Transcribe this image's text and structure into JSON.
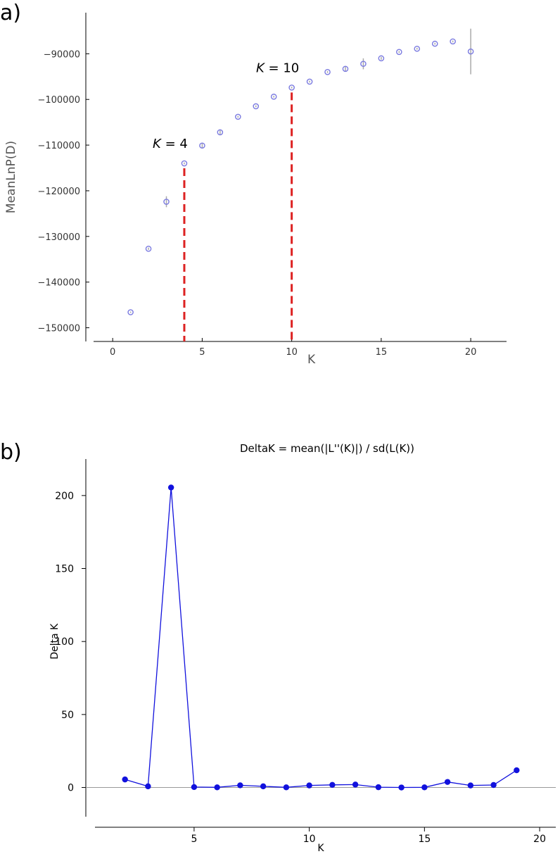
{
  "chart_data": [
    {
      "panel_label": "a)",
      "type": "scatter",
      "title": "",
      "xlabel": "K",
      "ylabel": "MeanLnP(D)",
      "xlim": [
        -1.5,
        22
      ],
      "ylim": [
        -153000,
        -81000
      ],
      "x_ticks": [
        0,
        5,
        10,
        15,
        20
      ],
      "x_tick_labels": [
        "0",
        "5",
        "10",
        "15",
        "20"
      ],
      "y_ticks": [
        -150000,
        -140000,
        -130000,
        -120000,
        -110000,
        -100000,
        -90000
      ],
      "y_tick_labels": [
        "−150000",
        "−140000",
        "−130000",
        "−120000",
        "−110000",
        "−100000",
        "−90000"
      ],
      "grid": false,
      "marker_color": "#7b7be0",
      "errorbar_color": "#aaaaaa",
      "x": [
        1,
        2,
        3,
        4,
        5,
        6,
        7,
        8,
        9,
        10,
        11,
        12,
        13,
        14,
        15,
        16,
        17,
        18,
        19,
        20
      ],
      "y": [
        -146600,
        -132700,
        -122400,
        -114000,
        -110100,
        -107200,
        -103800,
        -101500,
        -99400,
        -97400,
        -96100,
        -94000,
        -93300,
        -92200,
        -91000,
        -89600,
        -88900,
        -87800,
        -87300,
        -89500
      ],
      "error": [
        150,
        250,
        1200,
        200,
        500,
        500,
        200,
        200,
        200,
        200,
        200,
        200,
        500,
        1200,
        300,
        200,
        200,
        200,
        200,
        5000
      ],
      "annotations": [
        {
          "k_italic": "K",
          "rest": " = 4",
          "x": 4,
          "y_top": -114000,
          "color": "#dd2222"
        },
        {
          "k_italic": "K",
          "rest": " = 10",
          "x": 10,
          "y_top": -97400,
          "color": "#dd2222"
        }
      ]
    },
    {
      "panel_label": "b)",
      "type": "line",
      "title": "DeltaK = mean(|L''(K)|) / sd(L(K))",
      "xlabel": "K",
      "ylabel": "Delta K",
      "xlim": [
        0.3,
        20.7
      ],
      "ylim": [
        -20,
        225
      ],
      "x_ticks": [
        5,
        10,
        15,
        20
      ],
      "x_tick_labels": [
        "5",
        "10",
        "15",
        "20"
      ],
      "y_ticks": [
        0,
        50,
        100,
        150,
        200
      ],
      "y_tick_labels": [
        "0",
        "50",
        "100",
        "150",
        "200"
      ],
      "grid": false,
      "series": [
        {
          "color": "#1111dd",
          "x": [
            2,
            3,
            4,
            5,
            6,
            7,
            8,
            9,
            10,
            11,
            12,
            13,
            14,
            15,
            16,
            17,
            18,
            19
          ],
          "values": [
            5.5,
            0.8,
            205.5,
            0.3,
            0.1,
            1.5,
            0.8,
            0.1,
            1.4,
            1.8,
            2.0,
            0.2,
            0.0,
            0.1,
            3.8,
            1.4,
            1.7,
            11.8
          ]
        }
      ]
    }
  ]
}
